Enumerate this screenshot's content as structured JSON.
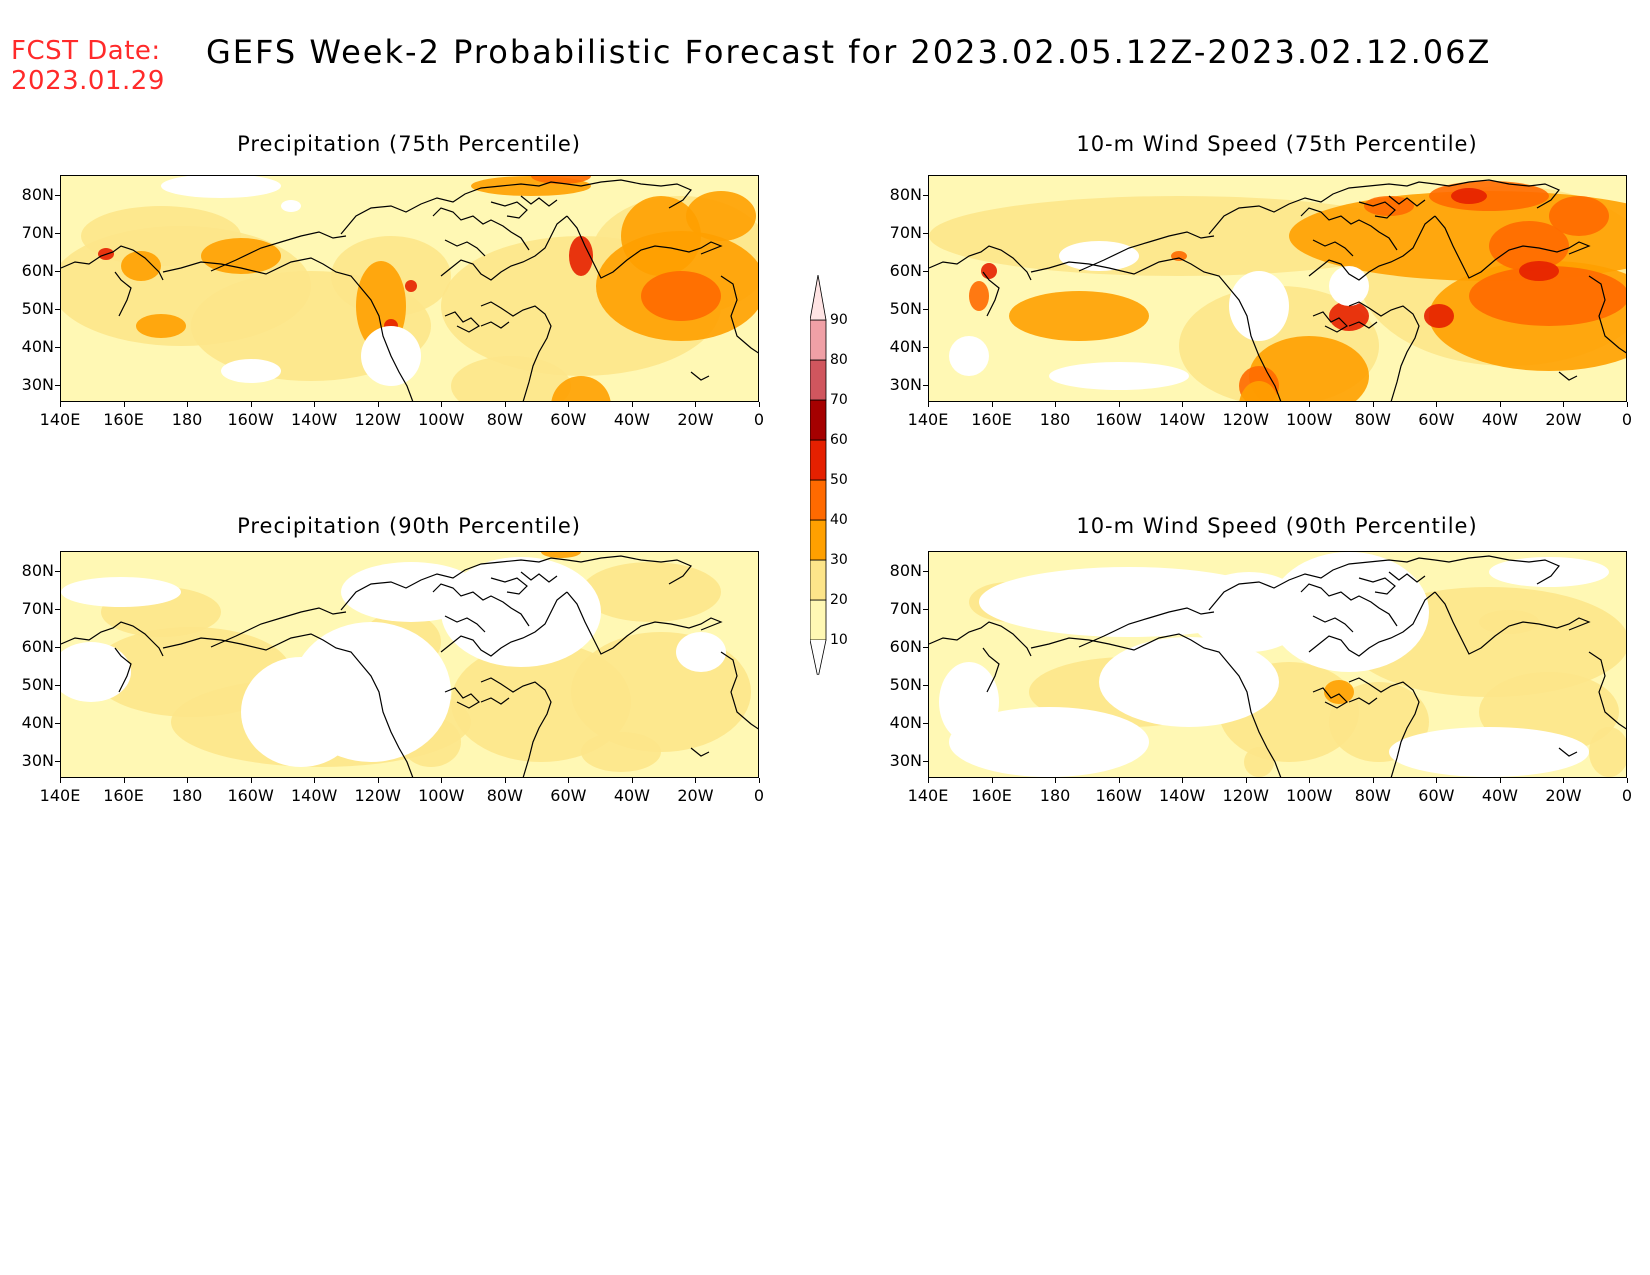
{
  "header": {
    "fcst_label": "FCST Date:",
    "fcst_date": "2023.01.29",
    "title": "GEFS Week-2 Probabilistic Forecast for 2023.02.05.12Z-2023.02.12.06Z"
  },
  "panels": [
    {
      "title": "Precipitation (75th Percentile)",
      "field": "precipitation",
      "percentile": 75,
      "intensity": "moderate-high"
    },
    {
      "title": "10-m Wind Speed (75th Percentile)",
      "field": "wind",
      "percentile": 75,
      "intensity": "high"
    },
    {
      "title": "Precipitation (90th Percentile)",
      "field": "precipitation",
      "percentile": 90,
      "intensity": "low"
    },
    {
      "title": "10-m Wind Speed (90th Percentile)",
      "field": "wind",
      "percentile": 90,
      "intensity": "low"
    }
  ],
  "axes": {
    "lat_labels": [
      "80N",
      "70N",
      "60N",
      "50N",
      "40N",
      "30N"
    ],
    "lon_labels": [
      "140E",
      "160E",
      "180",
      "160W",
      "140W",
      "120W",
      "100W",
      "80W",
      "60W",
      "40W",
      "20W",
      "0"
    ]
  },
  "colorbar": {
    "levels": [
      "10",
      "20",
      "30",
      "40",
      "50",
      "60",
      "70",
      "80",
      "90"
    ],
    "colors": [
      "#fff8b4",
      "#fde58a",
      "#ffa000",
      "#ff6a00",
      "#e52000",
      "#a50000",
      "#d0565e",
      "#f0a0a6",
      "#ffe4e4"
    ]
  }
}
